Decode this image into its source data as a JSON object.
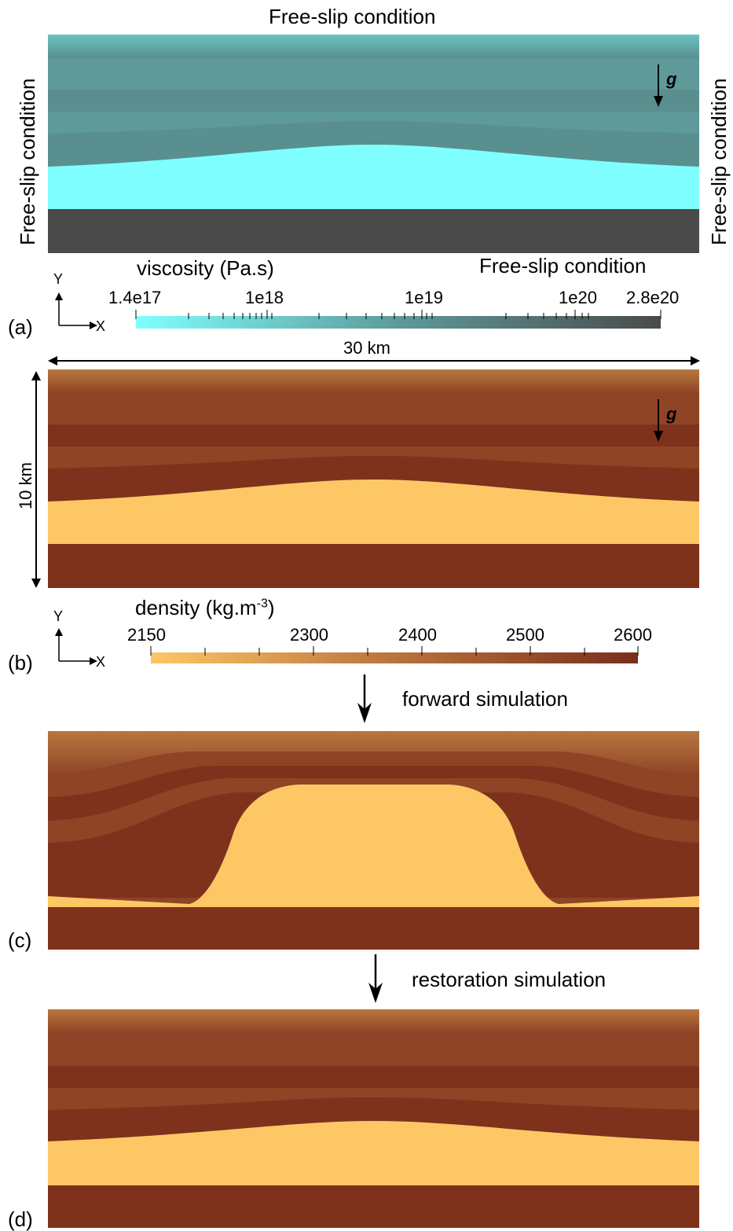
{
  "panel_a": {
    "label": "(a)",
    "top_bc": "Free-slip condition",
    "left_bc": "Free-slip condition",
    "right_bc": "Free-slip condition",
    "bottom_bc": "Free-slip condition",
    "gravity": "g",
    "colorbar": {
      "title": "viscosity (Pa.s)",
      "tick_labels": [
        "1.4e17",
        "1e18",
        "1e19",
        "1e20",
        "2.8e20"
      ],
      "color_min": "#7fffff",
      "color_max": "#4a4a4a"
    },
    "colors": {
      "overburden": "#5e9a9a",
      "overburden_alt": "#5a8f8f",
      "salt": "#7fffff",
      "basement": "#4a4a4a"
    }
  },
  "panel_b": {
    "label": "(b)",
    "width_label": "30 km",
    "height_label": "10 km",
    "gravity": "g",
    "colorbar": {
      "title_main": "density (kg.m",
      "title_sup": "-3",
      "title_end": ")",
      "tick_labels": [
        "2150",
        "2300",
        "2400",
        "2500",
        "2600"
      ],
      "color_min": "#fdc766",
      "color_max": "#7a2f1a"
    },
    "colors": {
      "layer_light": "#8f4426",
      "layer_dark": "#7e321c",
      "salt": "#fdc766",
      "basement": "#7e321c"
    }
  },
  "axes": {
    "x": "X",
    "y": "Y"
  },
  "arrow_forward": "forward simulation",
  "panel_c": {
    "label": "(c)"
  },
  "arrow_restoration": "restoration simulation",
  "panel_d": {
    "label": "(d)"
  }
}
